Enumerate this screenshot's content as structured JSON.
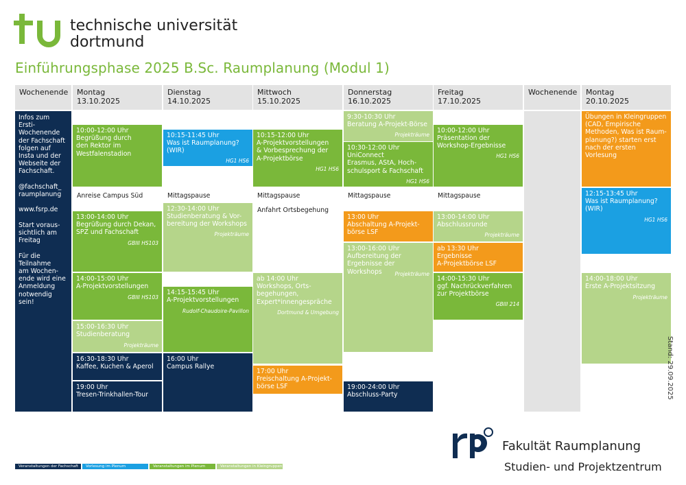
{
  "header": {
    "brand": "tu",
    "university_line1": "technische universität",
    "university_line2": "dortmund",
    "title": "Einführungsphase 2025 B.Sc. Raumplanung (Modul 1)"
  },
  "columns": [
    {
      "day": "Wochenende",
      "date": ""
    },
    {
      "day": "Montag",
      "date": "13.10.2025"
    },
    {
      "day": "Dienstag",
      "date": "14.10.2025"
    },
    {
      "day": "Mittwoch",
      "date": "15.10.2025"
    },
    {
      "day": "Donnerstag",
      "date": "16.10.2025"
    },
    {
      "day": "Freitag",
      "date": "17.10.2025"
    },
    {
      "day": "Wochenende",
      "date": ""
    },
    {
      "day": "Montag",
      "date": "20.10.2025"
    }
  ],
  "sidebar_info": "Infos zum Ersti-\nWochenende\nder Fachschaft\nfolgen auf\nInsta und der\nWebseite der\nFachschaft.\n\n@fachschaft_\nraumplanung\n\nwww.fsrp.de\n\nStart voraus-\nsichtlich am\nFreitag\n\nFür die\nTeilnahme\nam Wochen-\nende wird eine\nAnmeldung\nnotwendig sein!",
  "events": [
    {
      "text": "10:00-12:00 Uhr\nBegrüßung durch\nden Rektor im\nWestfalenstadion",
      "location": ""
    },
    {
      "text": "13:00-14:00 Uhr\nBegrüßung durch Dekan,\nSPZ und Fachschaft",
      "location": "GBIII HS103"
    },
    {
      "text": "14:00-15:00 Uhr\nA-Projektvorstellungen",
      "location": "GBIII HS103"
    },
    {
      "text": "15:00-16:30 Uhr\nStudienberatung",
      "location": "Projekträume"
    },
    {
      "text": "16:30-18:30 Uhr\nKaffee, Kuchen & Aperol",
      "location": ""
    },
    {
      "text": "19:00 Uhr\nTresen-Trinkhallen-Tour",
      "location": ""
    },
    {
      "text": "10:15-11:45 Uhr\nWas ist Raumplanung?\n(WIR)",
      "location": "HG1 HS6"
    },
    {
      "text": "12:30-14:00 Uhr\nStudienberatung & Vor-\nbereitung  der Workshops",
      "location": "Projekträume"
    },
    {
      "text": "14:15-15:45 Uhr\nA-Projektvorstellungen",
      "location": "Rudolf-Chaudoire-Pavillon"
    },
    {
      "text": "16:00 Uhr\nCampus Rallye",
      "location": ""
    },
    {
      "text": "10:15-12:00 Uhr\nA-Projektvorstellungen\n& Vorbesprechung der\nA-Projektbörse",
      "location": "HG1 HS6"
    },
    {
      "text": "ab 14:00 Uhr\nWorkshops, Orts-\nbegehungen,\nExpert*innengespräche",
      "location": "Dortmund & Umgebung"
    },
    {
      "text": "17:00 Uhr\nFreischaltung A-Projekt-\nbörse LSF",
      "location": ""
    },
    {
      "text": "9:30-10:30 Uhr\nBeratung A-Projekt-Börse",
      "location": "Projekträume"
    },
    {
      "text": "10:30-12:00 Uhr\nUniConnect\nErasmus,  AStA, Hoch-\nschulsport & Fachschaft",
      "location": "HG1 HS6"
    },
    {
      "text": "13:00 Uhr\nAbschaltung A-Projekt-\nbörse LSF",
      "location": ""
    },
    {
      "text": "13:00-16:00 Uhr\nAufbereitung der\nErgebnisse der Workshops",
      "location": "Projekträume"
    },
    {
      "text": "19:00-24:00 Uhr\nAbschluss-Party",
      "location": ""
    },
    {
      "text": "10:00-12:00 Uhr\nPräsentation der\nWorkshop-Ergebnisse",
      "location": "HG1 HS6"
    },
    {
      "text": "13:00-14:00 Uhr\nAbschlussrunde",
      "location": "Projekträume"
    },
    {
      "text": "ab 13:30 Uhr\nErgebnisse\nA-Projektbörse LSF",
      "location": ""
    },
    {
      "text": "14:00-15:30 Uhr\nggf. Nachrückverfahren\nzur Projektbörse",
      "location": "GBIII 214"
    },
    {
      "text": "Übungen in Kleingruppen\n(CAD, Empirische\nMethoden, Was ist Raum-\nplanung?) starten erst\nnach der ersten Vorlesung",
      "location": ""
    },
    {
      "text": "12:15-13:45 Uhr\nWas ist Raumplanung?\n(WIR)",
      "location": "HG1 HS6"
    },
    {
      "text": "14:00-18:00 Uhr\nErste A-Projektsitzung",
      "location": "Projekträume"
    }
  ],
  "plain_notes": [
    "Anreise Campus Süd",
    "Mittagspause",
    "Mittagspause",
    "Anfahrt Ortsbegehung",
    "Mittagspause",
    "Mittagspause"
  ],
  "stand": "Stand: 29.09.2025",
  "faculty": {
    "logo_text": "rp",
    "name": "Fakultät Raumplanung",
    "sub": "Studien- und Projektzentrum"
  },
  "legend": [
    {
      "label": "Veranstaltungen der Fachschaft",
      "color": "#0f2d52"
    },
    {
      "label": "Vorlesung im Plenum",
      "color": "#1ba0e2"
    },
    {
      "label": "Veranstaltungen im Plenum",
      "color": "#7ab83a"
    },
    {
      "label": "Veranstaltungen in Kleingruppen",
      "color": "#b5d58a"
    }
  ]
}
